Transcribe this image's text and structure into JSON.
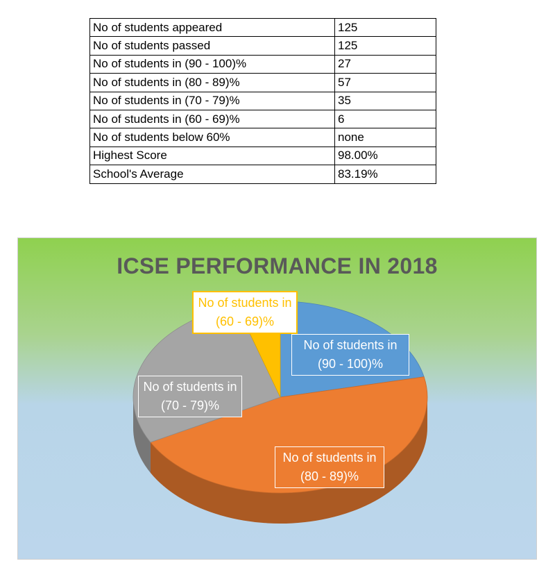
{
  "table": {
    "rows": [
      {
        "label": "No of students appeared",
        "value": "125"
      },
      {
        "label": "No of students passed",
        "value": "125"
      },
      {
        "label": "No of students in (90 - 100)%",
        "value": "27"
      },
      {
        "label": "No of students in (80 - 89)%",
        "value": "57"
      },
      {
        "label": "No of students in (70 - 79)%",
        "value": "35"
      },
      {
        "label": "No of students in (60 - 69)%",
        "value": "6"
      },
      {
        "label": "No of students below 60%",
        "value": "none"
      },
      {
        "label": "Highest Score",
        "value": "98.00%"
      },
      {
        "label": "School's Average",
        "value": "83.19%"
      }
    ]
  },
  "chart_data": {
    "type": "pie",
    "title": "ICSE PERFORMANCE IN 2018",
    "style": "3d-pie",
    "background": {
      "top": "#8fd14f",
      "bottom": "#bcd6ec"
    },
    "slices": [
      {
        "line1": "No of students in",
        "line2": "(90 - 100)%",
        "value": 27,
        "color": "#5b9bd5"
      },
      {
        "line1": "No of students in",
        "line2": "(80 - 89)%",
        "value": 57,
        "color": "#ed7d31"
      },
      {
        "line1": "No of students in",
        "line2": "(70 - 79)%",
        "value": 35,
        "color": "#a5a5a5"
      },
      {
        "line1": "No of students in",
        "line2": "(60 - 69)%",
        "value": 6,
        "color": "#ffc000"
      }
    ]
  }
}
